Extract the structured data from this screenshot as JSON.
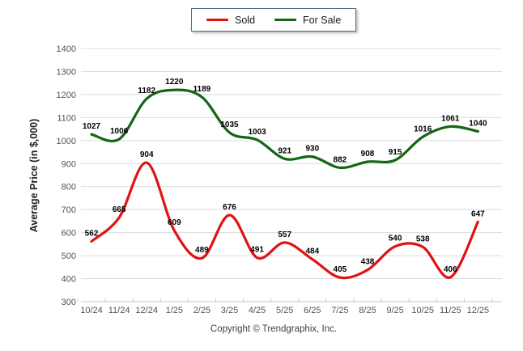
{
  "footer": {
    "copyright": "Copyright © Trendgraphix, Inc."
  },
  "chart_data": {
    "type": "line",
    "categories": [
      "10/24",
      "11/24",
      "12/24",
      "1/25",
      "2/25",
      "3/25",
      "4/25",
      "5/25",
      "6/25",
      "7/25",
      "8/25",
      "9/25",
      "10/25",
      "11/25",
      "12/25"
    ],
    "series": [
      {
        "name": "Sold",
        "color": "#e01212",
        "values": [
          562,
          665,
          904,
          609,
          489,
          676,
          491,
          557,
          484,
          405,
          438,
          540,
          538,
          406,
          647
        ]
      },
      {
        "name": "For Sale",
        "color": "#146614",
        "values": [
          1027,
          1006,
          1182,
          1220,
          1189,
          1035,
          1003,
          921,
          930,
          882,
          908,
          915,
          1016,
          1061,
          1040
        ]
      }
    ],
    "title": "",
    "xlabel": "",
    "ylabel": "Average Price (in $,000)",
    "ylim": [
      300,
      1400
    ],
    "ytick_step": 100,
    "grid": true,
    "legend_position": "top-center",
    "colors": {
      "gridline": "#dcdcdc",
      "axis_line": "#c3cad3",
      "tick_text": "#4c5560",
      "data_label": "#000000"
    }
  }
}
